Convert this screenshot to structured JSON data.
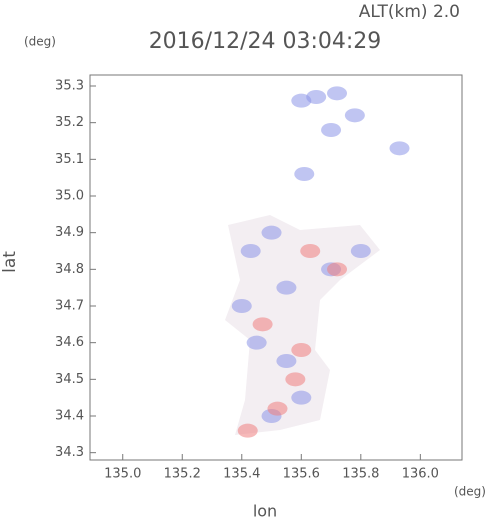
{
  "header": {
    "altitude": "ALT(km) 2.0",
    "y_unit": "(deg)",
    "x_unit": "(deg)"
  },
  "chart_data": {
    "type": "scatter",
    "title": "2016/12/24 03:04:29",
    "x_label": "lon",
    "y_label": "lat",
    "xlim": [
      134.89,
      136.14
    ],
    "ylim": [
      34.28,
      35.33
    ],
    "xticks": [
      {
        "value": 135,
        "label": "135.0"
      },
      {
        "value": 135.2,
        "label": "135.2"
      },
      {
        "value": 135.4,
        "label": "135.4"
      },
      {
        "value": 135.6,
        "label": "135.6"
      },
      {
        "value": 135.8,
        "label": "135.8"
      },
      {
        "value": 136,
        "label": "136.0"
      }
    ],
    "yticks": [
      34.3,
      34.4,
      34.5,
      34.6,
      34.7,
      34.8,
      34.9,
      {
        "value": 35,
        "label": "35.0"
      },
      35.1,
      35.2,
      35.3
    ],
    "series": [
      {
        "color": "#8c96e8",
        "x": [
          135.65,
          135.6,
          135.72,
          135.78,
          135.7,
          135.93,
          135.61,
          135.5,
          135.43,
          135.45,
          135.55,
          135.6,
          135.5,
          135.7,
          135.8,
          135.4,
          135.55
        ],
        "y": [
          35.27,
          35.26,
          35.28,
          35.22,
          35.18,
          35.13,
          35.06,
          34.9,
          34.85,
          34.6,
          34.55,
          34.45,
          34.4,
          34.8,
          34.85,
          34.7,
          34.75
        ]
      },
      {
        "color": "#ee8080",
        "x": [
          135.63,
          135.42,
          135.52,
          135.6,
          135.47,
          135.72,
          135.58
        ],
        "y": [
          34.85,
          34.36,
          34.42,
          34.58,
          34.65,
          34.8,
          34.5
        ]
      }
    ]
  }
}
